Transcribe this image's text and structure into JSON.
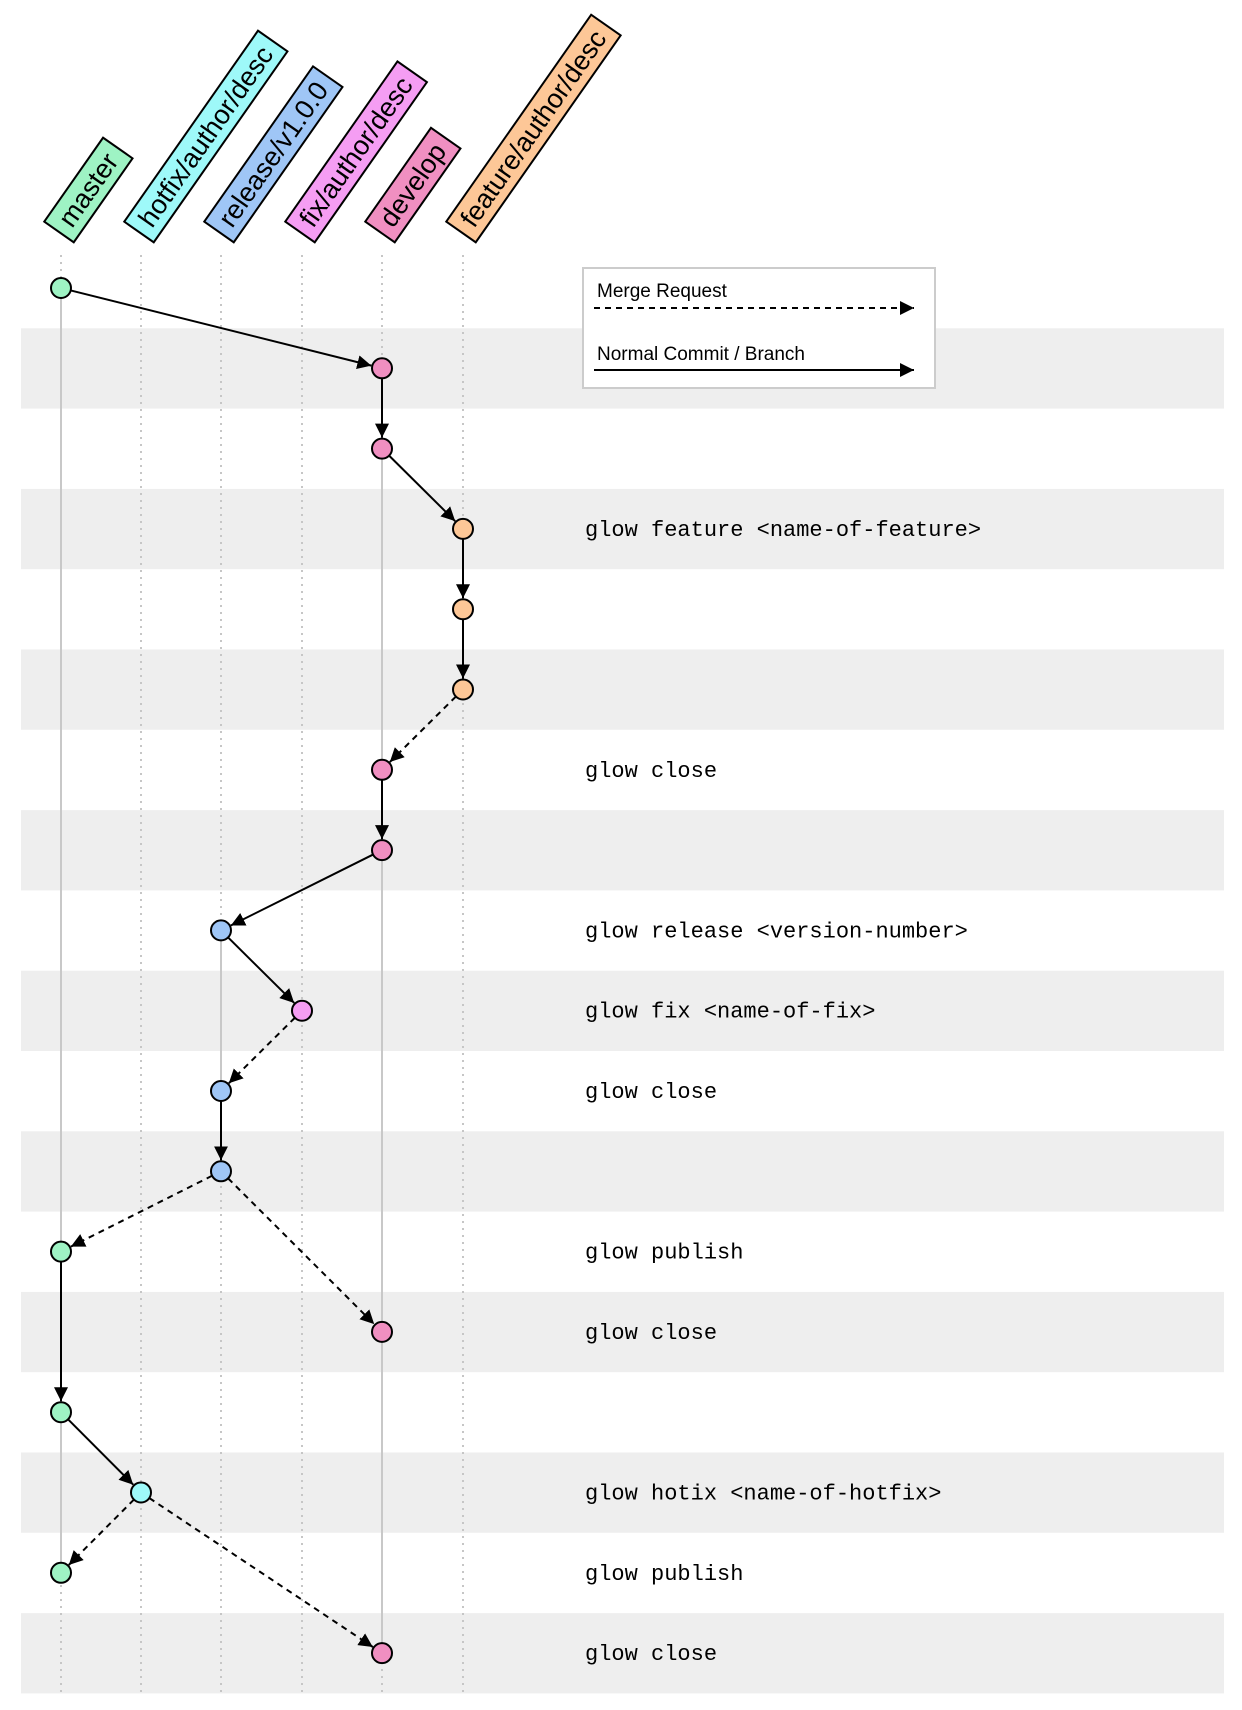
{
  "branches": [
    {
      "name": "master",
      "color": "#9ef3c4"
    },
    {
      "name": "hotfix/author/desc",
      "color": "#9ef9f9"
    },
    {
      "name": "release/v1.0.0",
      "color": "#9fc6f6"
    },
    {
      "name": "fix/author/desc",
      "color": "#f59df3"
    },
    {
      "name": "develop",
      "color": "#f08fc1"
    },
    {
      "name": "feature/author/desc",
      "color": "#fdc797"
    }
  ],
  "legend": {
    "merge_request_label": "Merge Request",
    "normal_commit_label": "Normal Commit / Branch"
  },
  "commits": [
    {
      "id": "c0",
      "branch": 0,
      "row": 0
    },
    {
      "id": "c1",
      "branch": 4,
      "row": 1
    },
    {
      "id": "c2",
      "branch": 4,
      "row": 2
    },
    {
      "id": "c3",
      "branch": 5,
      "row": 3
    },
    {
      "id": "c4",
      "branch": 5,
      "row": 4
    },
    {
      "id": "c5",
      "branch": 5,
      "row": 5
    },
    {
      "id": "c6",
      "branch": 4,
      "row": 6
    },
    {
      "id": "c7",
      "branch": 4,
      "row": 7
    },
    {
      "id": "c8",
      "branch": 2,
      "row": 8
    },
    {
      "id": "c9",
      "branch": 3,
      "row": 9
    },
    {
      "id": "c10",
      "branch": 2,
      "row": 10
    },
    {
      "id": "c11",
      "branch": 2,
      "row": 11
    },
    {
      "id": "c12",
      "branch": 0,
      "row": 12
    },
    {
      "id": "c13",
      "branch": 4,
      "row": 13
    },
    {
      "id": "c14",
      "branch": 0,
      "row": 14
    },
    {
      "id": "c15",
      "branch": 1,
      "row": 15
    },
    {
      "id": "c16",
      "branch": 0,
      "row": 16
    },
    {
      "id": "c17",
      "branch": 4,
      "row": 17
    }
  ],
  "edges": [
    {
      "from": "c0",
      "to": "c1",
      "type": "normal"
    },
    {
      "from": "c1",
      "to": "c2",
      "type": "normal"
    },
    {
      "from": "c2",
      "to": "c3",
      "type": "normal"
    },
    {
      "from": "c3",
      "to": "c4",
      "type": "normal"
    },
    {
      "from": "c4",
      "to": "c5",
      "type": "normal"
    },
    {
      "from": "c5",
      "to": "c6",
      "type": "merge"
    },
    {
      "from": "c6",
      "to": "c7",
      "type": "normal"
    },
    {
      "from": "c7",
      "to": "c8",
      "type": "normal"
    },
    {
      "from": "c8",
      "to": "c9",
      "type": "normal"
    },
    {
      "from": "c9",
      "to": "c10",
      "type": "merge"
    },
    {
      "from": "c10",
      "to": "c11",
      "type": "normal"
    },
    {
      "from": "c11",
      "to": "c12",
      "type": "merge"
    },
    {
      "from": "c11",
      "to": "c13",
      "type": "merge"
    },
    {
      "from": "c12",
      "to": "c14",
      "type": "normal"
    },
    {
      "from": "c14",
      "to": "c15",
      "type": "normal"
    },
    {
      "from": "c15",
      "to": "c16",
      "type": "merge"
    },
    {
      "from": "c15",
      "to": "c17",
      "type": "merge"
    }
  ],
  "lifelines": [
    {
      "branch": 0,
      "from_row": 0,
      "to_row": 16
    },
    {
      "branch": 4,
      "from_row": 1,
      "to_row": 17
    },
    {
      "branch": 2,
      "from_row": 8,
      "to_row": 11
    }
  ],
  "commands": [
    {
      "row": 3,
      "text": "glow feature <name-of-feature>"
    },
    {
      "row": 6,
      "text": "glow close"
    },
    {
      "row": 8,
      "text": "glow release <version-number>"
    },
    {
      "row": 9,
      "text": "glow fix <name-of-fix>"
    },
    {
      "row": 10,
      "text": "glow close"
    },
    {
      "row": 12,
      "text": "glow publish"
    },
    {
      "row": 13,
      "text": "glow close"
    },
    {
      "row": 15,
      "text": "glow hotix <name-of-hotfix>"
    },
    {
      "row": 16,
      "text": "glow publish"
    },
    {
      "row": 17,
      "text": "glow close"
    }
  ]
}
